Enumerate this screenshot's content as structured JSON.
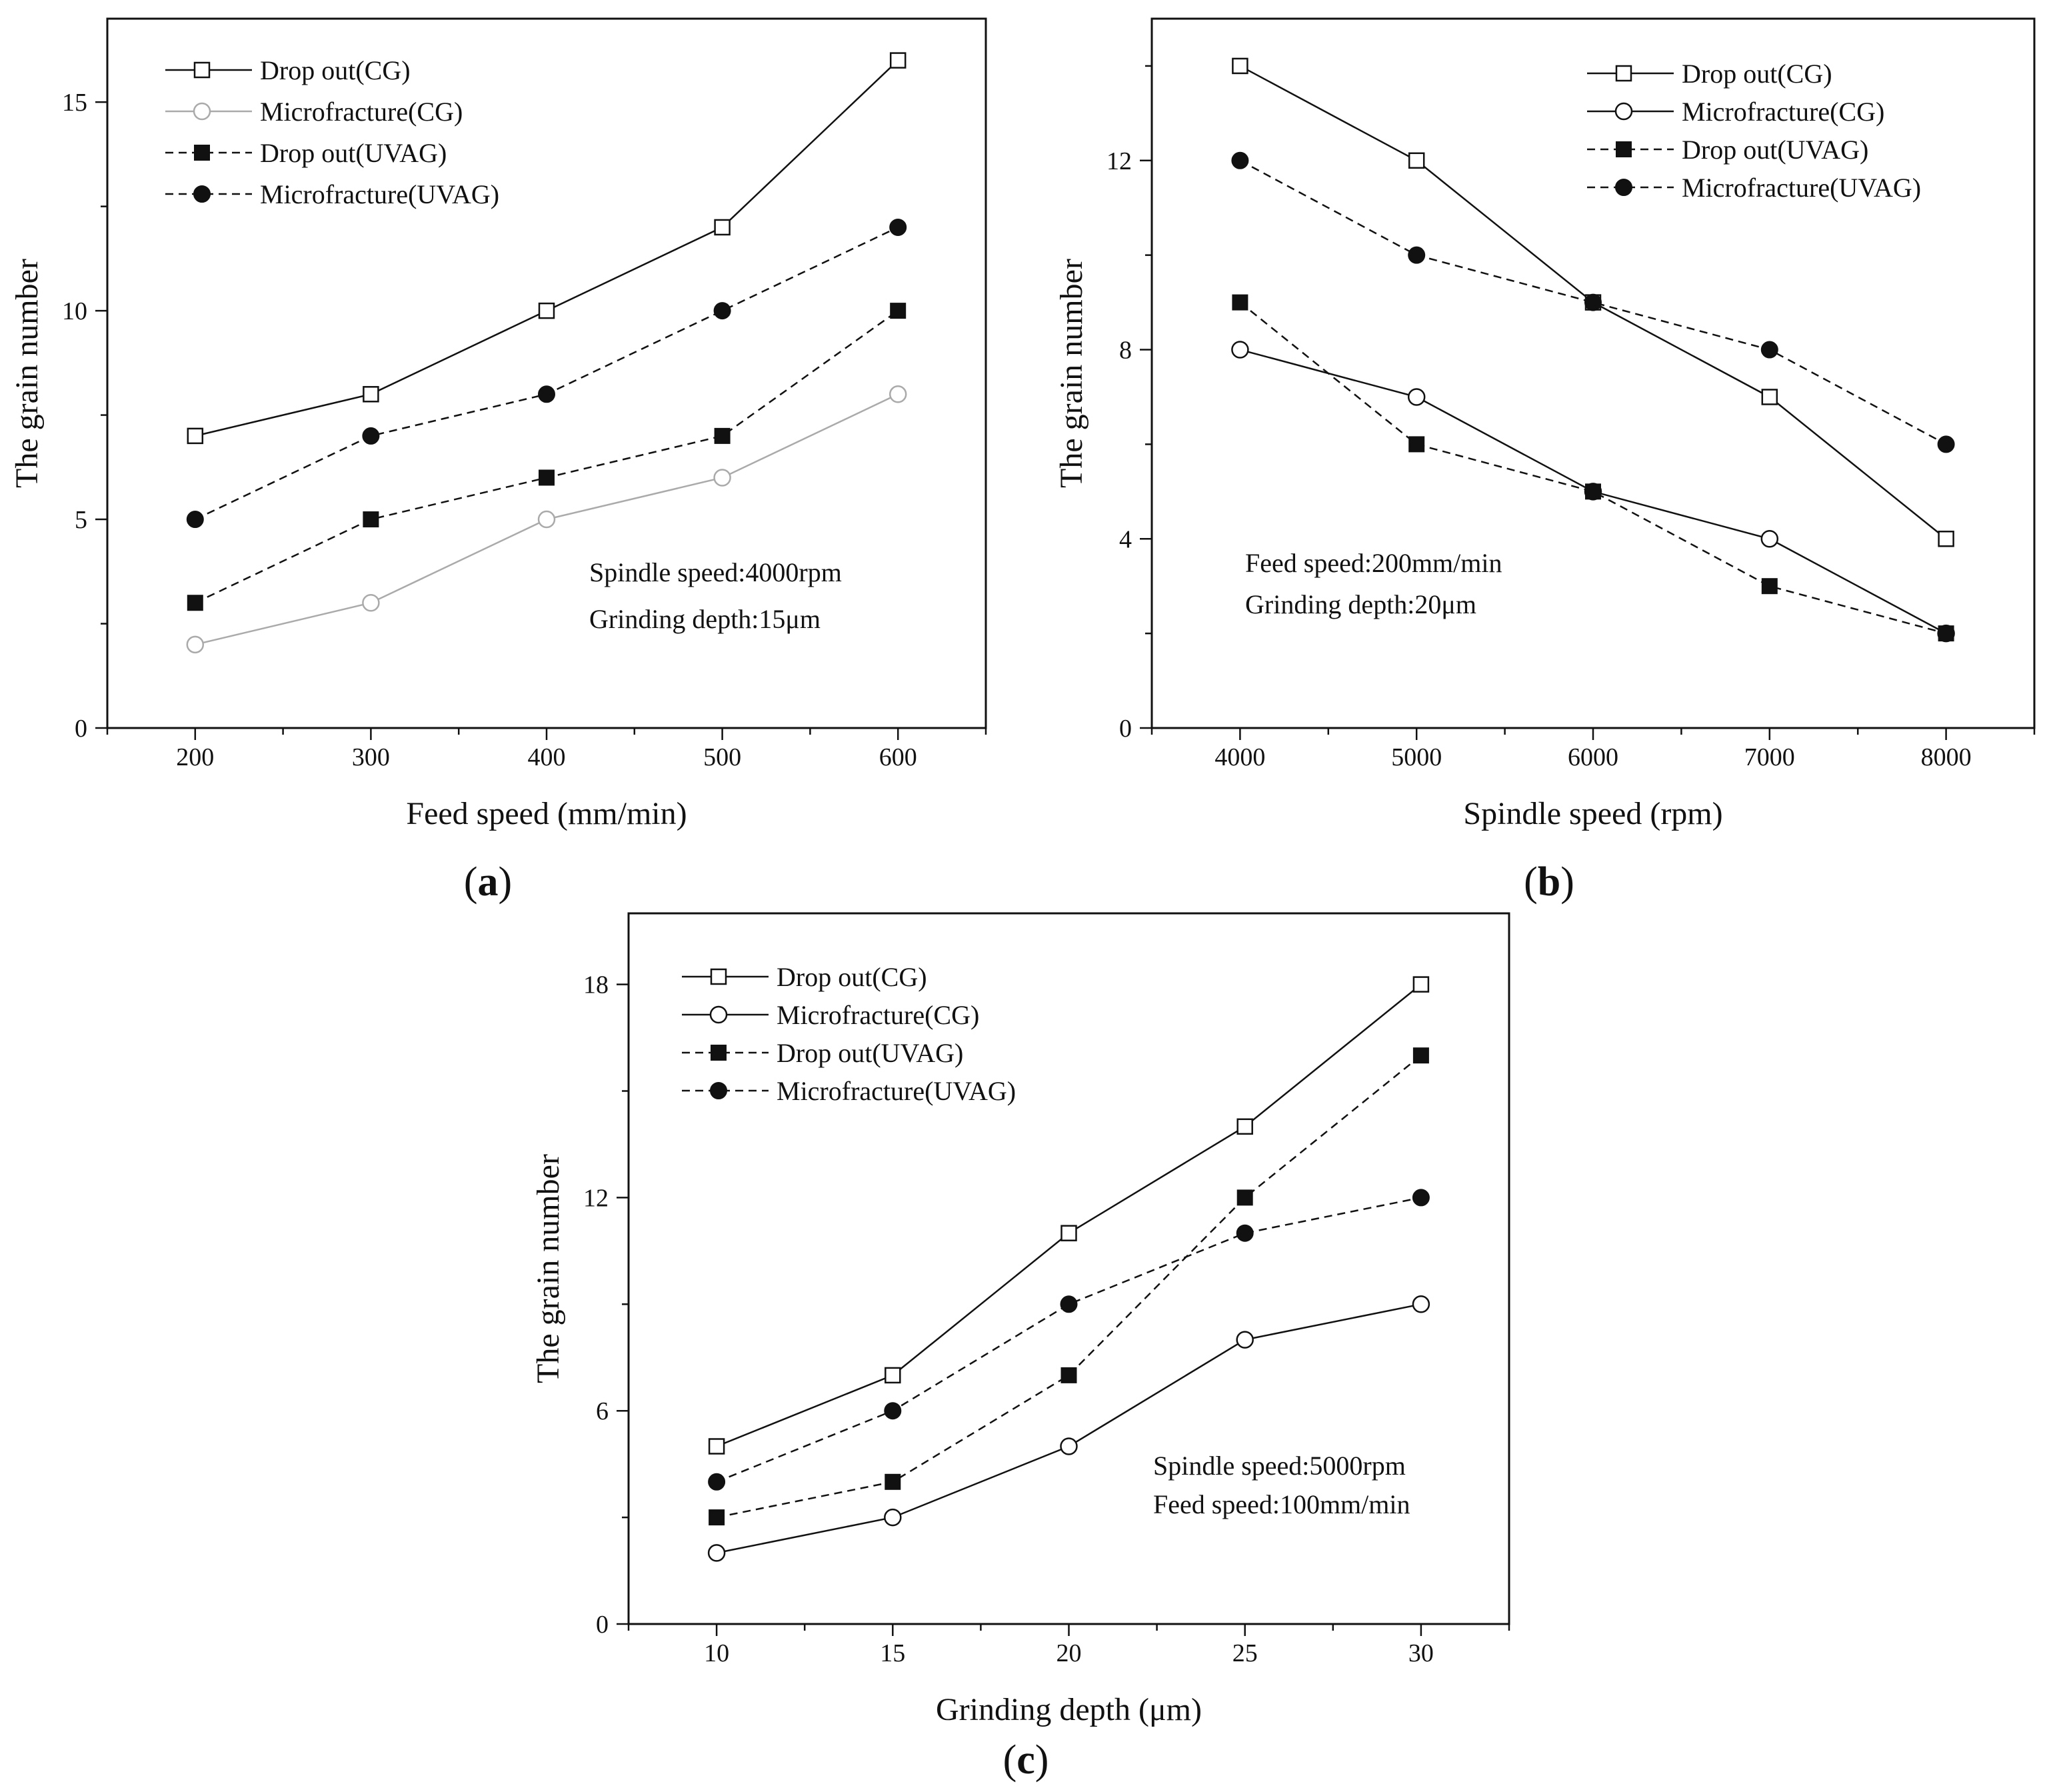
{
  "figure": {
    "panels": [
      {
        "id": "a",
        "caption_open": "(",
        "caption_letter": "a",
        "caption_close": ")"
      },
      {
        "id": "b",
        "caption_open": "(",
        "caption_letter": "b",
        "caption_close": ")"
      },
      {
        "id": "c",
        "caption_open": "(",
        "caption_letter": "c",
        "caption_close": ")"
      }
    ]
  },
  "colors": {
    "black": "#111111",
    "gray": "#aaaaaa"
  },
  "chart_data": [
    {
      "id": "a",
      "type": "line",
      "xlabel": "Feed speed (mm/min)",
      "ylabel": "The grain number",
      "x": [
        200,
        300,
        400,
        500,
        600
      ],
      "xlim": [
        150,
        650
      ],
      "ylim": [
        0,
        17
      ],
      "xticks": [
        200,
        300,
        400,
        500,
        600
      ],
      "yticks": [
        0,
        5,
        10,
        15
      ],
      "series": [
        {
          "name": "Drop out(CG)",
          "values": [
            7,
            8,
            10,
            12,
            16
          ],
          "marker": "square-open",
          "line": "solid",
          "color": "#111111"
        },
        {
          "name": "Microfracture(CG)",
          "values": [
            2,
            3,
            5,
            6,
            8
          ],
          "marker": "circle-open",
          "line": "solid",
          "color": "#aaaaaa"
        },
        {
          "name": "Drop out(UVAG)",
          "values": [
            3,
            5,
            6,
            7,
            10
          ],
          "marker": "square-filled",
          "line": "dashed",
          "color": "#111111"
        },
        {
          "name": "Microfracture(UVAG)",
          "values": [
            5,
            7,
            8,
            10,
            12
          ],
          "marker": "circle-filled",
          "line": "dashed",
          "color": "#111111"
        }
      ],
      "annotations": [
        "Spindle speed:4000rpm",
        "Grinding depth:15μm"
      ],
      "legend": "top-left"
    },
    {
      "id": "b",
      "type": "line",
      "xlabel": "Spindle speed (rpm)",
      "ylabel": "The grain number",
      "x": [
        4000,
        5000,
        6000,
        7000,
        8000
      ],
      "xlim": [
        3500,
        8500
      ],
      "ylim": [
        0,
        15
      ],
      "xticks": [
        4000,
        5000,
        6000,
        7000,
        8000
      ],
      "yticks": [
        0,
        4,
        8,
        12
      ],
      "series": [
        {
          "name": "Drop out(CG)",
          "values": [
            14,
            12,
            9,
            7,
            4
          ],
          "marker": "square-open",
          "line": "solid",
          "color": "#111111"
        },
        {
          "name": "Microfracture(CG)",
          "values": [
            8,
            7,
            5,
            4,
            2
          ],
          "marker": "circle-open",
          "line": "solid",
          "color": "#111111"
        },
        {
          "name": "Drop out(UVAG)",
          "values": [
            9,
            6,
            5,
            3,
            2
          ],
          "marker": "square-filled",
          "line": "dashed",
          "color": "#111111"
        },
        {
          "name": "Microfracture(UVAG)",
          "values": [
            12,
            10,
            9,
            8,
            6
          ],
          "marker": "circle-filled",
          "line": "dashed",
          "color": "#111111"
        }
      ],
      "annotations": [
        "Feed speed:200mm/min",
        "Grinding depth:20μm"
      ],
      "legend": "top-right"
    },
    {
      "id": "c",
      "type": "line",
      "xlabel": "Grinding depth (μm)",
      "ylabel": "The grain number",
      "x": [
        10,
        15,
        20,
        25,
        30
      ],
      "xlim": [
        7.5,
        32.5
      ],
      "ylim": [
        0,
        20
      ],
      "xticks": [
        10,
        15,
        20,
        25,
        30
      ],
      "yticks": [
        0,
        6,
        12,
        18
      ],
      "series": [
        {
          "name": "Drop out(CG)",
          "values": [
            5,
            7,
            11,
            14,
            18
          ],
          "marker": "square-open",
          "line": "solid",
          "color": "#111111"
        },
        {
          "name": "Microfracture(CG)",
          "values": [
            2,
            3,
            5,
            8,
            9
          ],
          "marker": "circle-open",
          "line": "solid",
          "color": "#111111"
        },
        {
          "name": "Drop out(UVAG)",
          "values": [
            3,
            4,
            7,
            12,
            16
          ],
          "marker": "square-filled",
          "line": "dashed",
          "color": "#111111"
        },
        {
          "name": "Microfracture(UVAG)",
          "values": [
            4,
            6,
            9,
            11,
            12
          ],
          "marker": "circle-filled",
          "line": "dashed",
          "color": "#111111"
        }
      ],
      "annotations": [
        "Spindle speed:5000rpm",
        "Feed speed:100mm/min"
      ],
      "legend": "top-left"
    }
  ]
}
